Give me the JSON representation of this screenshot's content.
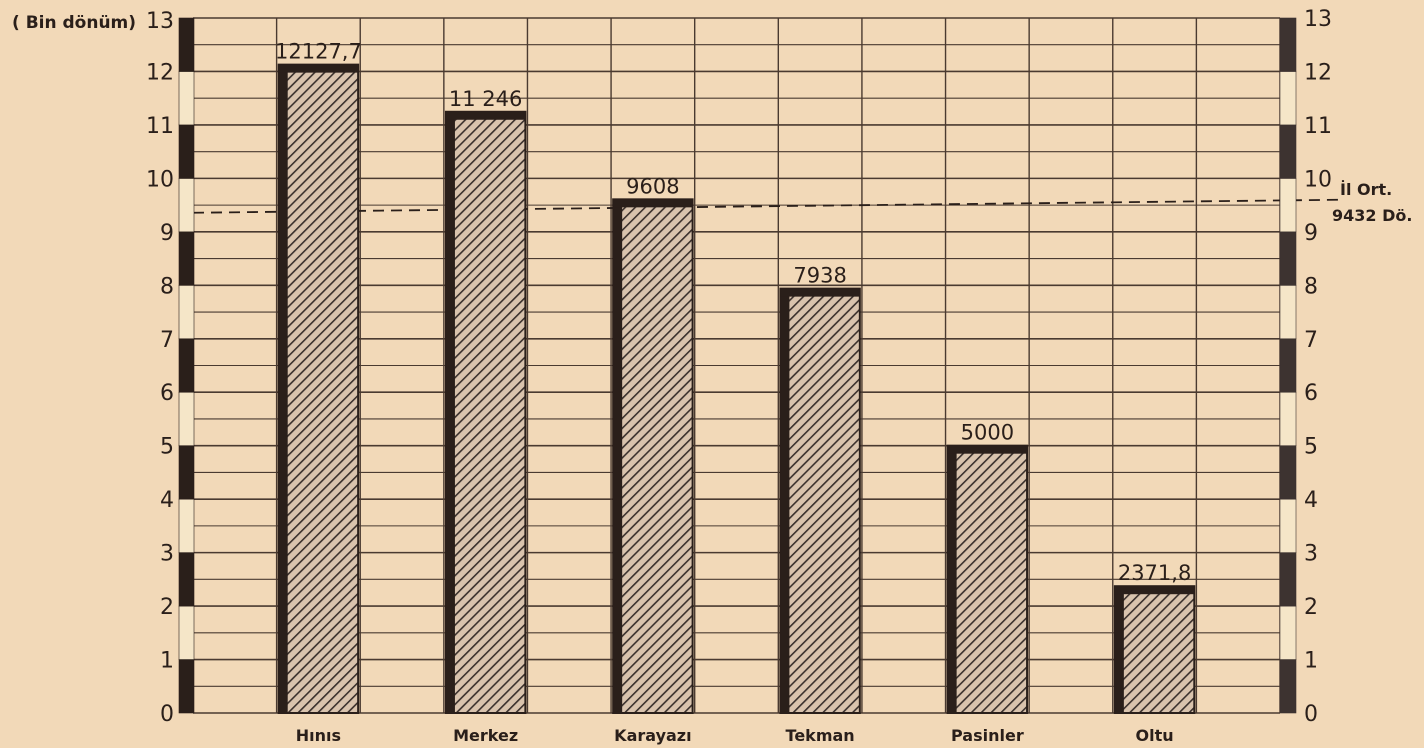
{
  "chart_data": {
    "type": "bar",
    "unit_label": "( Bin dönüm)",
    "categories": [
      "Hınıs",
      "Merkez",
      "Karayazı",
      "Tekman",
      "Pasinler",
      "Oltu"
    ],
    "values": [
      12.1277,
      11.246,
      9.608,
      7.938,
      5.0,
      2.3718
    ],
    "value_labels": [
      "12127,7",
      "11 246",
      "9608",
      "7938",
      "5000",
      "2371,8"
    ],
    "ylim": [
      0,
      13
    ],
    "y_ticks": [
      "0",
      "1",
      "2",
      "3",
      "4",
      "5",
      "6",
      "7",
      "8",
      "9",
      "10",
      "11",
      "12",
      "13"
    ],
    "grid": true,
    "average": {
      "value": 9.432,
      "label_line1": "İl Ort.",
      "label_line2": "9432 Dö."
    },
    "colors": {
      "background": "#f2d9b8",
      "ink": "#2a1f1a",
      "bar_hatch": "#3a302c",
      "grid": "#4a3a30"
    }
  }
}
